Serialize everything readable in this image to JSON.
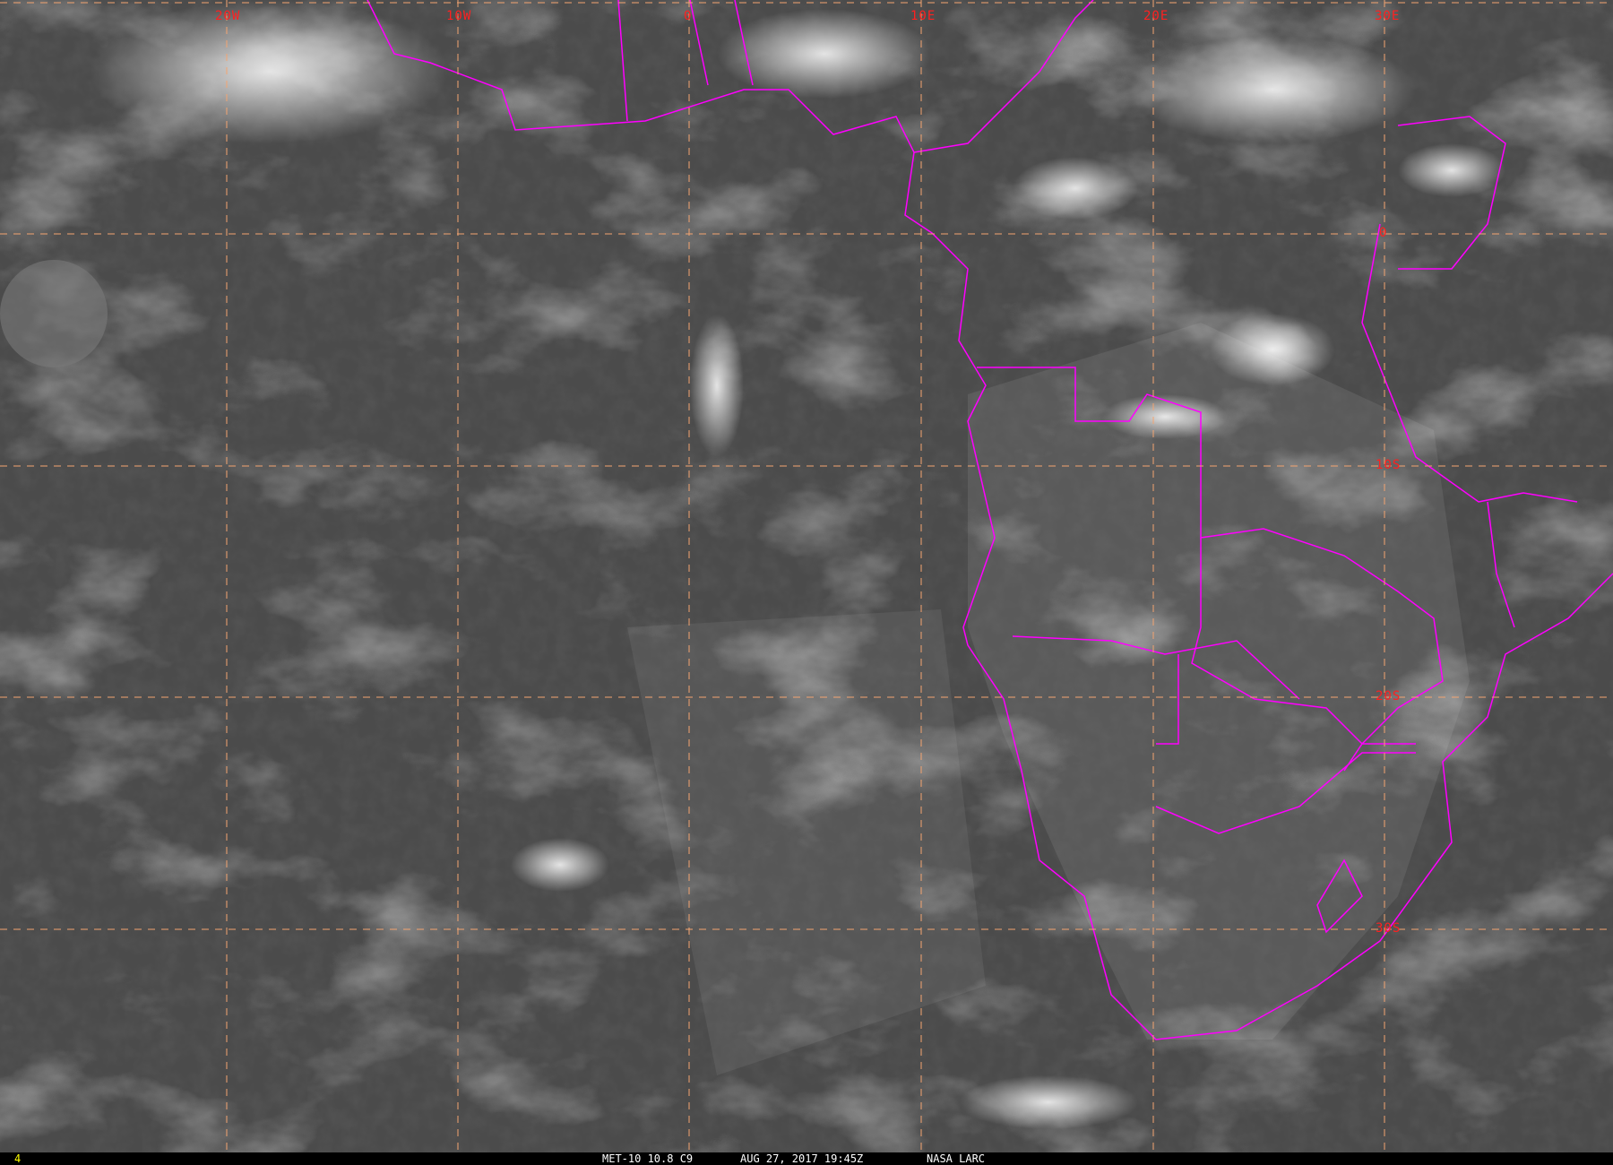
{
  "map": {
    "type": "satellite infrared image",
    "colors": {
      "grid": "#f4a470",
      "borders": "#ff00ff",
      "labels": "#ff2020",
      "caption": "#ffffff",
      "frame_number": "#ffff00"
    },
    "longitude_labels": [
      "20W",
      "10W",
      "0",
      "10E",
      "20E",
      "30E"
    ],
    "latitude_labels": [
      "0",
      "10S",
      "20S",
      "30S"
    ]
  },
  "caption": {
    "frame_number": "4",
    "satellite_channel": "MET-10 10.8 C9",
    "datetime": "AUG 27, 2017 19:45Z",
    "source": "NASA LARC"
  }
}
